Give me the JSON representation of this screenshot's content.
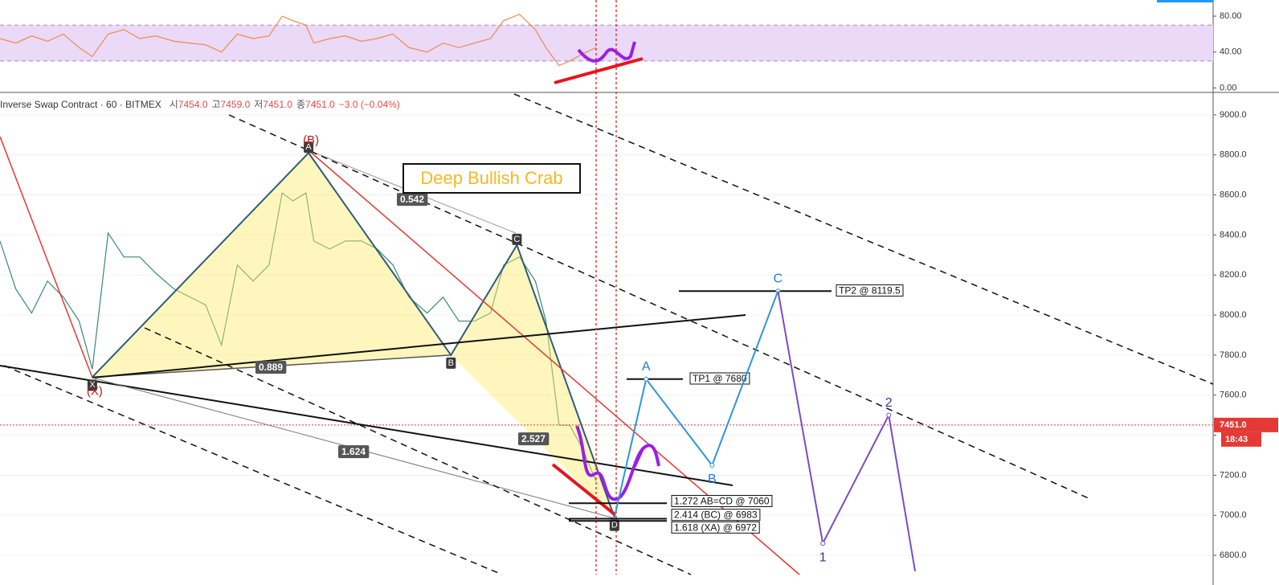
{
  "header": {
    "symbol": "Inverse Swap Contract · 60 · BITMEX",
    "ohlc": [
      {
        "label": "시",
        "value": "7454.0"
      },
      {
        "label": "고",
        "value": "7459.0"
      },
      {
        "label": "저",
        "value": "7451.0"
      },
      {
        "label": "종",
        "value": "7451.0"
      }
    ],
    "change": "−3.0 (−0.04%)"
  },
  "chart_data": [
    {
      "type": "line",
      "color": "#f08a4b",
      "x": [
        0,
        6,
        12,
        18,
        24,
        30,
        35,
        41,
        47,
        53,
        59,
        66,
        72,
        78,
        84,
        90,
        96,
        102,
        107,
        111,
        116,
        119,
        125,
        131,
        137,
        143,
        149,
        155,
        162,
        168,
        174,
        180,
        186,
        191,
        197,
        203,
        207,
        212,
        216,
        221,
        226
      ],
      "values": [
        55,
        50,
        58,
        52,
        60,
        45,
        35,
        60,
        65,
        55,
        58,
        52,
        50,
        48,
        40,
        60,
        55,
        58,
        80,
        75,
        70,
        50,
        55,
        58,
        52,
        55,
        60,
        45,
        40,
        50,
        45,
        50,
        55,
        75,
        82,
        65,
        45,
        25,
        30,
        38,
        45
      ],
      "xlim": [
        0,
        460
      ],
      "ylim": [
        -5,
        98
      ],
      "yticks": [
        {
          "value": 0,
          "label": "0.00"
        },
        {
          "value": 40,
          "label": "40.00"
        },
        {
          "value": 80,
          "label": "80.00"
        }
      ],
      "bands": [
        30,
        70
      ],
      "band_color": "#ead9f7"
    },
    {
      "type": "line",
      "color": "#3a8a6e",
      "x": [
        0,
        6,
        12,
        18,
        24,
        30,
        35,
        41,
        47,
        53,
        59,
        66,
        72,
        78,
        84,
        90,
        96,
        102,
        107,
        111,
        116,
        119,
        125,
        131,
        137,
        143,
        149,
        155,
        162,
        168,
        174,
        180,
        186,
        191,
        197,
        203,
        207,
        212,
        216,
        221,
        226
      ],
      "values": [
        8370,
        8130,
        8010,
        8170,
        8090,
        7970,
        7730,
        8410,
        8290,
        8290,
        8210,
        8130,
        8090,
        8050,
        7850,
        8250,
        8170,
        8250,
        8610,
        8570,
        8610,
        8370,
        8330,
        8370,
        8370,
        8330,
        8250,
        8090,
        8010,
        8090,
        7970,
        7970,
        8010,
        8250,
        8290,
        8170,
        7970,
        7450,
        7450,
        7330,
        7170
      ],
      "xlim": [
        0,
        460
      ],
      "ylim": [
        6704,
        9112
      ],
      "grid": true,
      "yticks": [
        {
          "value": 6800,
          "label": "6800.0"
        },
        {
          "value": 7000,
          "label": "7000.0"
        },
        {
          "value": 7200,
          "label": "7200.0"
        },
        {
          "value": 7400,
          "label": "7400.0"
        },
        {
          "value": 7600,
          "label": "7600.0"
        },
        {
          "value": 7800,
          "label": "7800.0"
        },
        {
          "value": 8000,
          "label": "8000.0"
        },
        {
          "value": 8200,
          "label": "8200.0"
        },
        {
          "value": 8400,
          "label": "8400.0"
        },
        {
          "value": 8600,
          "label": "8600.0"
        },
        {
          "value": 8800,
          "label": "8800.0"
        },
        {
          "value": 9000,
          "label": "9000.0"
        }
      ],
      "last_price": {
        "value": 7451,
        "label": "7451.0"
      },
      "countdown": "18:43",
      "pattern": {
        "title": "Deep Bullish Crab",
        "labels": [
          "X",
          "A",
          "B",
          "C",
          "D"
        ],
        "x": [
          35,
          117,
          171,
          196,
          233
        ],
        "values": [
          7690,
          8810,
          7800,
          8350,
          6990
        ],
        "wave_labels": [
          "(X)",
          "(B)"
        ],
        "ratios": [
          0.542,
          0.889,
          1.624,
          2.527
        ]
      },
      "levels": [
        {
          "label": "TP2 @ 8119.5",
          "value": 8119.5
        },
        {
          "label": "TP1 @ 7680",
          "value": 7680
        },
        {
          "label": "1.272 AB=CD @ 7060",
          "value": 7060
        },
        {
          "label": "2.414 (BC) @ 6983",
          "value": 6983
        },
        {
          "label": "1.618 (XA) @ 6972",
          "value": 6972
        }
      ],
      "abc": {
        "labels": [
          "A",
          "B",
          "C"
        ],
        "x": [
          245,
          270,
          295
        ],
        "values": [
          7680,
          7250,
          8120
        ]
      },
      "impulse": {
        "labels": [
          "1",
          "2",
          null
        ],
        "x": [
          312,
          337,
          347
        ],
        "values": [
          6860,
          7500,
          6720
        ]
      }
    }
  ]
}
